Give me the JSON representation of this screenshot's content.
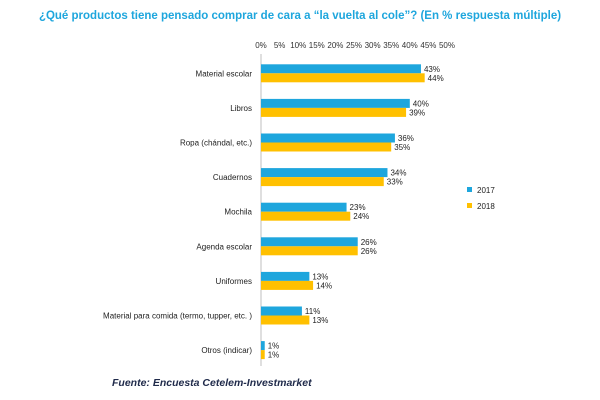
{
  "chart_data": {
    "type": "bar",
    "orientation": "horizontal",
    "title": "¿Qué productos tiene pensado comprar de cara a “la vuelta al cole”? (En % respuesta múltiple)",
    "categories": [
      "Material escolar",
      "Libros",
      "Ropa (chándal, etc.)",
      "Cuadernos",
      "Mochila",
      "Agenda escolar",
      "Uniformes",
      "Material para comida (termo, tupper, etc. )",
      "Otros (indicar)"
    ],
    "series": [
      {
        "name": "2017",
        "values": [
          43,
          40,
          36,
          34,
          23,
          26,
          13,
          11,
          1
        ],
        "color": "#1ea6dd"
      },
      {
        "name": "2018",
        "values": [
          44,
          39,
          35,
          33,
          24,
          26,
          14,
          13,
          1
        ],
        "color": "#ffc000"
      }
    ],
    "x_ticks": [
      "0%",
      "5%",
      "10%",
      "15%",
      "20%",
      "25%",
      "30%",
      "35%",
      "40%",
      "45%",
      "50%"
    ],
    "xlim": [
      0,
      50
    ],
    "x_axis_position": "top",
    "value_suffix": "%",
    "grid": false,
    "legend_position": "right"
  },
  "source": "Fuente: Encuesta Cetelem-Investmarket"
}
